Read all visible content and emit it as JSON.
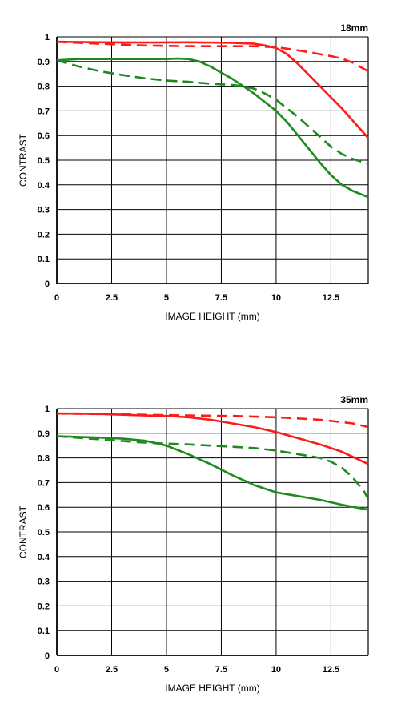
{
  "chart_data": [
    {
      "type": "line",
      "title": "18mm",
      "xlabel": "IMAGE HEIGHT (mm)",
      "ylabel": "CONTRAST",
      "xlim": [
        0,
        14.2
      ],
      "ylim": [
        0,
        1
      ],
      "xticks": [
        0,
        2.5,
        5,
        7.5,
        10,
        12.5
      ],
      "xtick_labels": [
        "0",
        "2.5",
        "5",
        "7.5",
        "10",
        "12.5"
      ],
      "yticks": [
        0,
        0.1,
        0.2,
        0.3,
        0.4,
        0.5,
        0.6,
        0.7,
        0.8,
        0.9,
        1
      ],
      "ytick_labels": [
        "0",
        "0.1",
        "0.2",
        "0.3",
        "0.4",
        "0.5",
        "0.6",
        "0.7",
        "0.8",
        "0.9",
        "1"
      ],
      "grid": true,
      "series": [
        {
          "color": "#ff1a1a",
          "dash": false,
          "x": [
            0,
            2,
            4,
            6,
            8,
            9,
            9.5,
            10,
            10.5,
            11,
            11.5,
            12,
            12.5,
            13,
            13.5,
            14.2
          ],
          "y": [
            0.98,
            0.978,
            0.977,
            0.978,
            0.976,
            0.972,
            0.965,
            0.955,
            0.93,
            0.89,
            0.845,
            0.8,
            0.755,
            0.71,
            0.66,
            0.59
          ]
        },
        {
          "color": "#ff1a1a",
          "dash": true,
          "x": [
            0,
            2,
            4,
            6,
            8,
            9,
            10,
            10.5,
            11,
            11.5,
            12,
            12.5,
            13,
            13.5,
            14.2
          ],
          "y": [
            0.98,
            0.972,
            0.965,
            0.962,
            0.962,
            0.962,
            0.958,
            0.952,
            0.945,
            0.938,
            0.93,
            0.922,
            0.912,
            0.895,
            0.86
          ]
        },
        {
          "color": "#1e8a1e",
          "dash": false,
          "x": [
            0,
            1,
            2,
            3,
            4,
            5,
            5.5,
            6,
            6.5,
            7,
            7.5,
            8,
            8.5,
            9,
            9.5,
            10,
            10.5,
            11,
            11.5,
            12,
            12.5,
            13,
            13.5,
            14.2
          ],
          "y": [
            0.905,
            0.91,
            0.91,
            0.91,
            0.91,
            0.91,
            0.912,
            0.91,
            0.9,
            0.88,
            0.855,
            0.83,
            0.8,
            0.77,
            0.735,
            0.7,
            0.655,
            0.6,
            0.545,
            0.49,
            0.44,
            0.4,
            0.375,
            0.35
          ]
        },
        {
          "color": "#1e8a1e",
          "dash": true,
          "x": [
            0,
            1,
            2,
            3,
            4,
            5,
            6,
            7,
            8,
            8.5,
            9,
            9.5,
            10,
            10.5,
            11,
            11.5,
            12,
            12.5,
            13,
            13.5,
            14.2
          ],
          "y": [
            0.905,
            0.88,
            0.86,
            0.845,
            0.832,
            0.823,
            0.818,
            0.81,
            0.805,
            0.8,
            0.79,
            0.77,
            0.745,
            0.71,
            0.675,
            0.635,
            0.595,
            0.555,
            0.525,
            0.505,
            0.485
          ]
        }
      ]
    },
    {
      "type": "line",
      "title": "35mm",
      "xlabel": "IMAGE HEIGHT (mm)",
      "ylabel": "CONTRAST",
      "xlim": [
        0,
        14.2
      ],
      "ylim": [
        0,
        1
      ],
      "xticks": [
        0,
        2.5,
        5,
        7.5,
        10,
        12.5
      ],
      "xtick_labels": [
        "0",
        "2.5",
        "5",
        "7.5",
        "10",
        "12.5"
      ],
      "yticks": [
        0,
        0.1,
        0.2,
        0.3,
        0.4,
        0.5,
        0.6,
        0.7,
        0.8,
        0.9,
        1
      ],
      "ytick_labels": [
        "0",
        "0.1",
        "0.2",
        "0.3",
        "0.4",
        "0.5",
        "0.6",
        "0.7",
        "0.8",
        "0.9",
        "1"
      ],
      "grid": true,
      "series": [
        {
          "color": "#ff1a1a",
          "dash": false,
          "x": [
            0,
            1,
            2,
            3,
            4,
            5,
            6,
            7,
            8,
            9,
            10,
            11,
            12,
            13,
            14.2
          ],
          "y": [
            0.98,
            0.98,
            0.978,
            0.975,
            0.972,
            0.97,
            0.965,
            0.955,
            0.94,
            0.925,
            0.905,
            0.88,
            0.855,
            0.825,
            0.775
          ]
        },
        {
          "color": "#ff1a1a",
          "dash": true,
          "x": [
            0,
            2,
            4,
            6,
            8,
            10,
            11,
            12,
            13,
            13.5,
            14.2
          ],
          "y": [
            0.98,
            0.978,
            0.975,
            0.972,
            0.97,
            0.965,
            0.96,
            0.955,
            0.945,
            0.94,
            0.925
          ]
        },
        {
          "color": "#1e8a1e",
          "dash": false,
          "x": [
            0,
            1,
            2,
            3,
            4,
            5,
            6,
            7,
            8,
            9,
            9.5,
            10,
            11,
            12,
            13,
            14.2
          ],
          "y": [
            0.888,
            0.885,
            0.882,
            0.878,
            0.87,
            0.85,
            0.815,
            0.775,
            0.73,
            0.69,
            0.675,
            0.66,
            0.645,
            0.63,
            0.61,
            0.59
          ]
        },
        {
          "color": "#1e8a1e",
          "dash": true,
          "x": [
            0,
            2,
            4,
            5,
            6,
            7,
            8,
            9,
            10,
            11,
            12,
            12.5,
            13,
            13.5,
            14,
            14.2
          ],
          "y": [
            0.888,
            0.875,
            0.862,
            0.858,
            0.855,
            0.85,
            0.845,
            0.84,
            0.83,
            0.815,
            0.8,
            0.785,
            0.76,
            0.72,
            0.665,
            0.635
          ]
        }
      ]
    }
  ]
}
